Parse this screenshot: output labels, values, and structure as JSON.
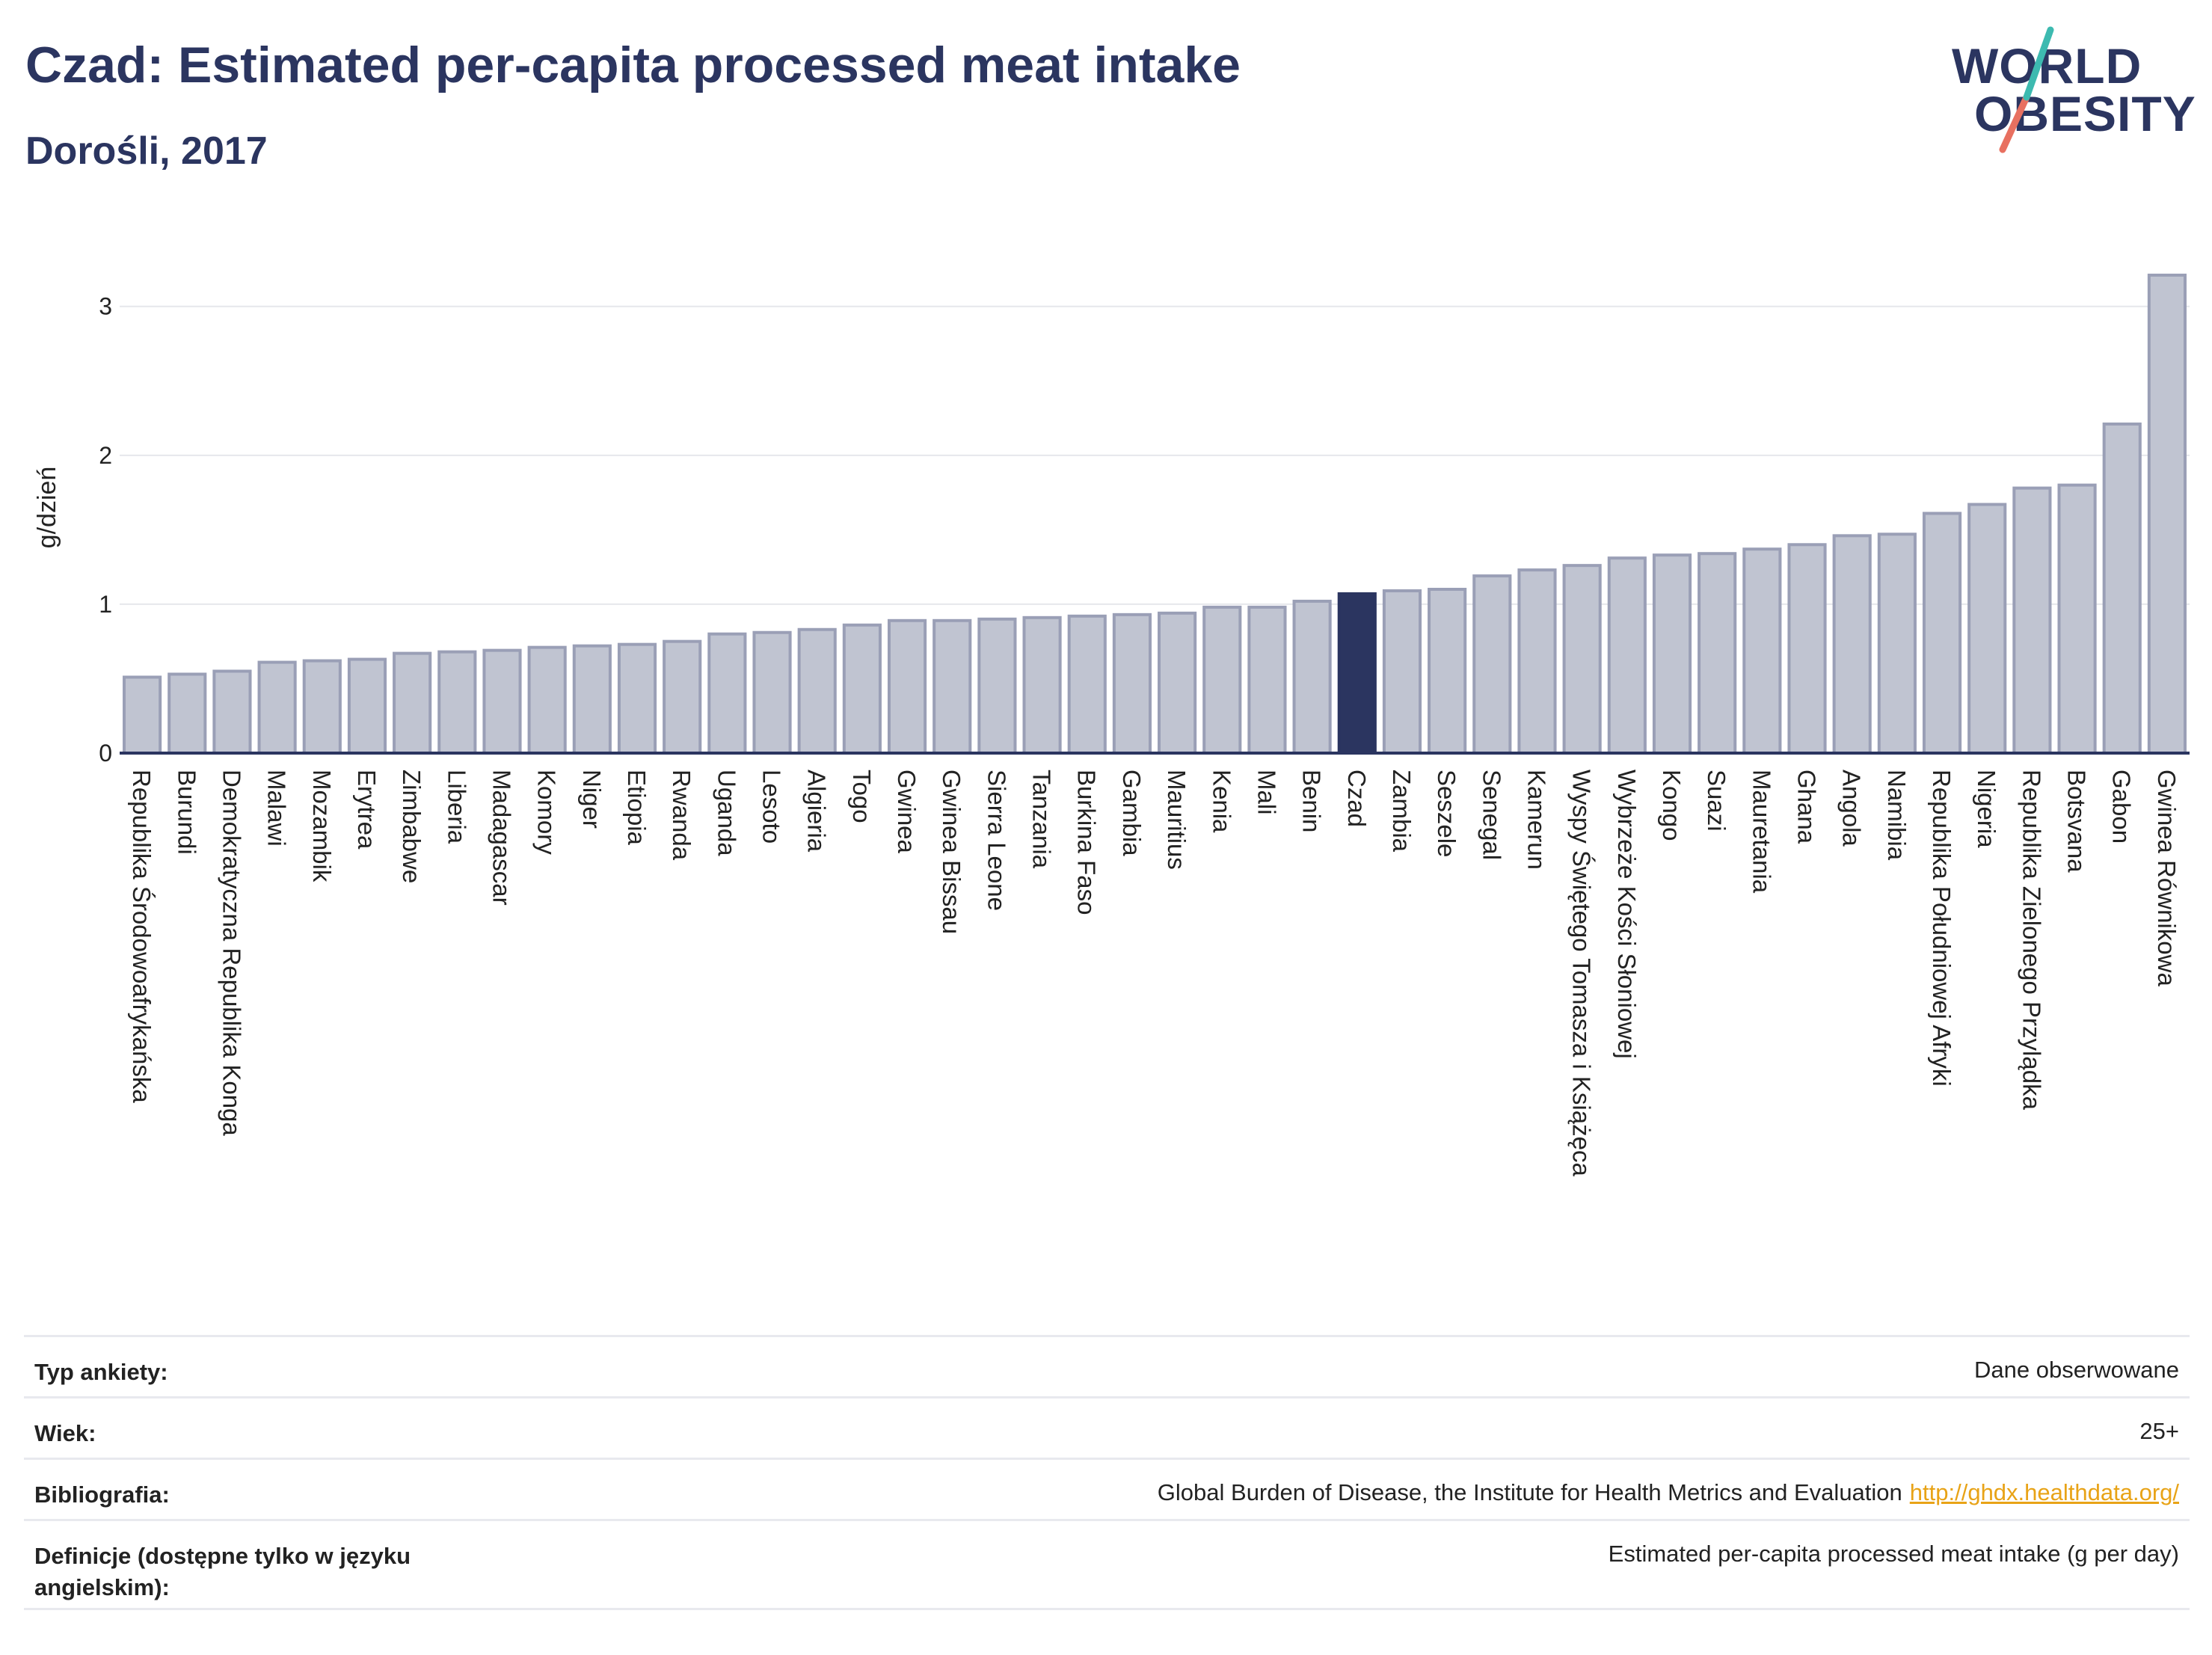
{
  "header": {
    "title": "Czad: Estimated per-capita processed meat intake",
    "subtitle": "Dorośli, 2017"
  },
  "logo": {
    "line1": "WORLD",
    "line2": "OBESITY"
  },
  "colors": {
    "bar": "#c0c4d1",
    "bar_stroke": "#9a9fb6",
    "highlight": "#2b3560",
    "grid": "#e6e7ec",
    "axis": "#2b3560",
    "logo_teal": "#3dbab0",
    "logo_coral": "#e87060"
  },
  "chart_data": {
    "type": "bar",
    "ylabel": "g/dzień",
    "ylim": [
      0,
      3.3
    ],
    "yticks": [
      0,
      1,
      2,
      3
    ],
    "highlight": "Czad",
    "categories": [
      "Republika Środowoafrykańska",
      "Burundi",
      "Demokratyczna Republika Konga",
      "Malawi",
      "Mozambik",
      "Erytrea",
      "Zimbabwe",
      "Liberia",
      "Madagascar",
      "Komory",
      "Niger",
      "Etiopia",
      "Rwanda",
      "Uganda",
      "Lesoto",
      "Algieria",
      "Togo",
      "Gwinea",
      "Gwinea Bissau",
      "Sierra Leone",
      "Tanzania",
      "Burkina Faso",
      "Gambia",
      "Mauritius",
      "Kenia",
      "Mali",
      "Benin",
      "Czad",
      "Zambia",
      "Seszele",
      "Senegal",
      "Kamerun",
      "Wyspy Świętego Tomasza i Książęca",
      "Wybrzeże Kości Słoniowej",
      "Kongo",
      "Suazi",
      "Mauretania",
      "Ghana",
      "Angola",
      "Namibia",
      "Republika Południowej Afryki",
      "Nigeria",
      "Republika Zielonego Przylądka",
      "Botsvana",
      "Gabon",
      "Gwinea Równikowa"
    ],
    "values": [
      0.51,
      0.53,
      0.55,
      0.61,
      0.62,
      0.63,
      0.67,
      0.68,
      0.69,
      0.71,
      0.72,
      0.73,
      0.75,
      0.8,
      0.81,
      0.83,
      0.86,
      0.89,
      0.89,
      0.9,
      0.91,
      0.92,
      0.93,
      0.94,
      0.98,
      0.98,
      1.02,
      1.07,
      1.09,
      1.1,
      1.19,
      1.23,
      1.26,
      1.31,
      1.33,
      1.34,
      1.37,
      1.4,
      1.46,
      1.47,
      1.61,
      1.67,
      1.78,
      1.8,
      2.21,
      3.21
    ]
  },
  "meta": [
    {
      "label": "Typ ankiety:",
      "value": "Dane obserwowane"
    },
    {
      "label": "Wiek:",
      "value": "25+"
    },
    {
      "label": "Bibliografia:",
      "value": "Global Burden of Disease, the Institute for Health Metrics and Evaluation",
      "link": "http://ghdx.healthdata.org/"
    },
    {
      "label": "Definicje (dostępne tylko w języku angielskim):",
      "value": "Estimated per-capita processed meat intake (g per day)"
    }
  ]
}
